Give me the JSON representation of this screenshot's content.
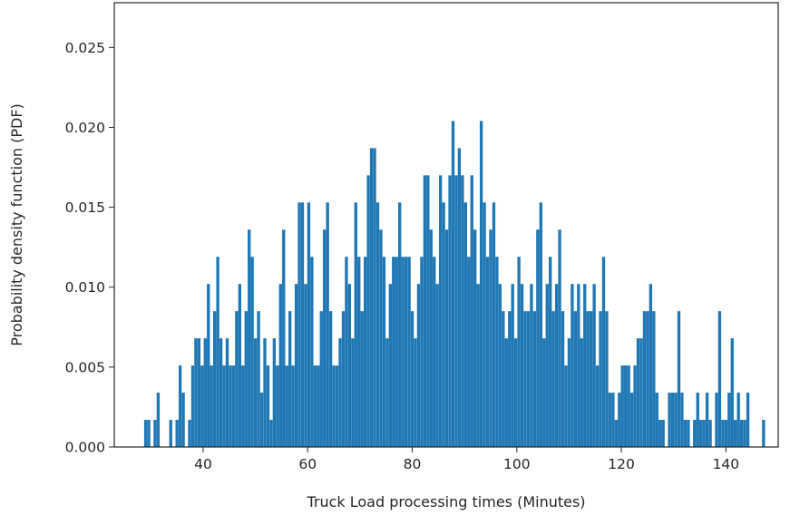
{
  "chart_data": {
    "type": "bar",
    "xlabel": "Truck Load processing times (Minutes)",
    "ylabel": "Probability density function (PDF)",
    "xlim": [
      23.0,
      150.0
    ],
    "ylim": [
      0,
      0.0278
    ],
    "x_ticks": [
      40,
      60,
      80,
      100,
      120,
      140
    ],
    "x_tick_labels": [
      "40",
      "60",
      "80",
      "100",
      "120",
      "140"
    ],
    "y_ticks": [
      0.0,
      0.005,
      0.01,
      0.015,
      0.02,
      0.025
    ],
    "y_tick_labels": [
      "0.000",
      "0.005",
      "0.010",
      "0.015",
      "0.020",
      "0.025"
    ],
    "grid": false,
    "legend": "none",
    "bar_color": "#1f77b4",
    "bin_width": 0.58,
    "series": [
      {
        "values": [
          [
            29.0,
            0.0017
          ],
          [
            29.6,
            0.0017
          ],
          [
            30.2,
            0
          ],
          [
            30.8,
            0.0017
          ],
          [
            31.4,
            0.0034
          ],
          [
            32.0,
            0
          ],
          [
            32.6,
            0
          ],
          [
            33.2,
            0
          ],
          [
            33.8,
            0.0017
          ],
          [
            34.4,
            0
          ],
          [
            35.0,
            0.0017
          ],
          [
            35.6,
            0.0051
          ],
          [
            36.2,
            0.0034
          ],
          [
            36.8,
            0
          ],
          [
            37.4,
            0.0017
          ],
          [
            38.0,
            0.0051
          ],
          [
            38.6,
            0.0068
          ],
          [
            39.2,
            0.0068
          ],
          [
            39.8,
            0.0051
          ],
          [
            40.4,
            0.0068
          ],
          [
            41.0,
            0.0102
          ],
          [
            41.6,
            0.0051
          ],
          [
            42.2,
            0.0085
          ],
          [
            42.8,
            0.0119
          ],
          [
            43.4,
            0.0068
          ],
          [
            44.0,
            0.0051
          ],
          [
            44.6,
            0.0068
          ],
          [
            45.2,
            0.0051
          ],
          [
            45.8,
            0.0051
          ],
          [
            46.4,
            0.0085
          ],
          [
            47.0,
            0.0102
          ],
          [
            47.6,
            0.0051
          ],
          [
            48.2,
            0.0085
          ],
          [
            48.8,
            0.0136
          ],
          [
            49.4,
            0.0119
          ],
          [
            50.0,
            0.0068
          ],
          [
            50.6,
            0.0085
          ],
          [
            51.2,
            0.0034
          ],
          [
            51.8,
            0.0068
          ],
          [
            52.4,
            0.0051
          ],
          [
            53.0,
            0.0017
          ],
          [
            53.6,
            0.0068
          ],
          [
            54.2,
            0.0051
          ],
          [
            54.8,
            0.0102
          ],
          [
            55.4,
            0.0136
          ],
          [
            56.0,
            0.0051
          ],
          [
            56.6,
            0.0085
          ],
          [
            57.2,
            0.0051
          ],
          [
            57.8,
            0.0102
          ],
          [
            58.4,
            0.0153
          ],
          [
            59.0,
            0.0153
          ],
          [
            59.6,
            0.0102
          ],
          [
            60.2,
            0.0153
          ],
          [
            60.8,
            0.0119
          ],
          [
            61.4,
            0.0051
          ],
          [
            62.0,
            0.0051
          ],
          [
            62.6,
            0.0085
          ],
          [
            63.2,
            0.0136
          ],
          [
            63.8,
            0.0153
          ],
          [
            64.4,
            0.0085
          ],
          [
            65.0,
            0.0051
          ],
          [
            65.6,
            0.0051
          ],
          [
            66.2,
            0.0068
          ],
          [
            66.8,
            0.0085
          ],
          [
            67.4,
            0.0119
          ],
          [
            68.0,
            0.0102
          ],
          [
            68.6,
            0.0068
          ],
          [
            69.2,
            0.0153
          ],
          [
            69.8,
            0.0119
          ],
          [
            70.4,
            0.0085
          ],
          [
            71.0,
            0.0119
          ],
          [
            71.6,
            0.017
          ],
          [
            72.2,
            0.0187
          ],
          [
            72.8,
            0.0187
          ],
          [
            73.4,
            0.0153
          ],
          [
            74.0,
            0.0136
          ],
          [
            74.6,
            0.0119
          ],
          [
            75.2,
            0.0068
          ],
          [
            75.8,
            0.0102
          ],
          [
            76.4,
            0.0119
          ],
          [
            77.0,
            0.0119
          ],
          [
            77.6,
            0.0153
          ],
          [
            78.2,
            0.0119
          ],
          [
            78.8,
            0.0119
          ],
          [
            79.4,
            0.0119
          ],
          [
            80.0,
            0.0085
          ],
          [
            80.6,
            0.0068
          ],
          [
            81.2,
            0.0102
          ],
          [
            81.8,
            0.0119
          ],
          [
            82.4,
            0.017
          ],
          [
            83.0,
            0.017
          ],
          [
            83.6,
            0.0136
          ],
          [
            84.2,
            0.0119
          ],
          [
            84.8,
            0.0102
          ],
          [
            85.4,
            0.017
          ],
          [
            86.0,
            0.0153
          ],
          [
            86.6,
            0.0136
          ],
          [
            87.2,
            0.017
          ],
          [
            87.8,
            0.0204
          ],
          [
            88.4,
            0.017
          ],
          [
            89.0,
            0.0187
          ],
          [
            89.6,
            0.017
          ],
          [
            90.2,
            0.0153
          ],
          [
            90.8,
            0.0119
          ],
          [
            91.4,
            0.017
          ],
          [
            92.0,
            0.0136
          ],
          [
            92.6,
            0.0102
          ],
          [
            93.2,
            0.0204
          ],
          [
            93.8,
            0.0153
          ],
          [
            94.4,
            0.0119
          ],
          [
            95.0,
            0.0136
          ],
          [
            95.6,
            0.0153
          ],
          [
            96.2,
            0.0119
          ],
          [
            96.8,
            0.0102
          ],
          [
            97.4,
            0.0085
          ],
          [
            98.0,
            0.0068
          ],
          [
            98.6,
            0.0085
          ],
          [
            99.2,
            0.0102
          ],
          [
            99.8,
            0.0068
          ],
          [
            100.4,
            0.0119
          ],
          [
            101.0,
            0.0102
          ],
          [
            101.6,
            0.0085
          ],
          [
            102.2,
            0.0085
          ],
          [
            102.8,
            0.0102
          ],
          [
            103.4,
            0.0085
          ],
          [
            104.0,
            0.0136
          ],
          [
            104.6,
            0.0153
          ],
          [
            105.2,
            0.0068
          ],
          [
            105.8,
            0.0102
          ],
          [
            106.4,
            0.0119
          ],
          [
            107.0,
            0.0085
          ],
          [
            107.6,
            0.0102
          ],
          [
            108.2,
            0.0136
          ],
          [
            108.8,
            0.0085
          ],
          [
            109.4,
            0.0051
          ],
          [
            110.0,
            0.0068
          ],
          [
            110.6,
            0.0102
          ],
          [
            111.2,
            0.0085
          ],
          [
            111.8,
            0.0102
          ],
          [
            112.4,
            0.0068
          ],
          [
            113.0,
            0.0102
          ],
          [
            113.6,
            0.0085
          ],
          [
            114.2,
            0.0085
          ],
          [
            114.8,
            0.0102
          ],
          [
            115.4,
            0.0051
          ],
          [
            116.0,
            0.0085
          ],
          [
            116.6,
            0.0119
          ],
          [
            117.2,
            0.0085
          ],
          [
            117.8,
            0.0034
          ],
          [
            118.4,
            0.0034
          ],
          [
            119.0,
            0.0017
          ],
          [
            119.6,
            0.0034
          ],
          [
            120.2,
            0.0051
          ],
          [
            120.8,
            0.0051
          ],
          [
            121.4,
            0.0051
          ],
          [
            122.0,
            0.0034
          ],
          [
            122.6,
            0.0051
          ],
          [
            123.2,
            0.0068
          ],
          [
            123.8,
            0.0068
          ],
          [
            124.4,
            0.0085
          ],
          [
            125.0,
            0.0085
          ],
          [
            125.6,
            0.0102
          ],
          [
            126.2,
            0.0085
          ],
          [
            126.8,
            0.0034
          ],
          [
            127.4,
            0.0017
          ],
          [
            128.0,
            0.0017
          ],
          [
            128.6,
            0
          ],
          [
            129.2,
            0.0034
          ],
          [
            129.8,
            0.0034
          ],
          [
            130.4,
            0.0034
          ],
          [
            131.0,
            0.0085
          ],
          [
            131.6,
            0.0034
          ],
          [
            132.2,
            0.0017
          ],
          [
            132.8,
            0.0017
          ],
          [
            133.4,
            0
          ],
          [
            134.0,
            0.0017
          ],
          [
            134.6,
            0.0034
          ],
          [
            135.2,
            0.0017
          ],
          [
            135.8,
            0.0017
          ],
          [
            136.4,
            0.0034
          ],
          [
            137.0,
            0.0017
          ],
          [
            137.6,
            0
          ],
          [
            138.2,
            0.0034
          ],
          [
            138.8,
            0.0085
          ],
          [
            139.4,
            0.0017
          ],
          [
            140.0,
            0.0017
          ],
          [
            140.6,
            0.0034
          ],
          [
            141.2,
            0.0068
          ],
          [
            141.8,
            0.0017
          ],
          [
            142.4,
            0.0034
          ],
          [
            143.0,
            0.0017
          ],
          [
            143.6,
            0.0017
          ],
          [
            144.2,
            0.0034
          ],
          [
            144.8,
            0
          ],
          [
            145.4,
            0
          ],
          [
            146.0,
            0
          ],
          [
            146.6,
            0
          ],
          [
            147.2,
            0.0017
          ],
          [
            147.8,
            0
          ]
        ]
      }
    ]
  }
}
